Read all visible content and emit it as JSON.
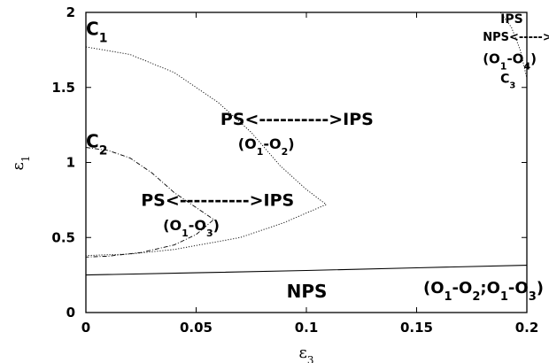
{
  "chart_data": {
    "type": "line",
    "xlabel": "ε",
    "xlabel_sub": "3",
    "ylabel": "ε",
    "ylabel_sub": "1",
    "xlim": [
      0,
      0.2
    ],
    "ylim": [
      0,
      2
    ],
    "x_ticks": [
      0,
      0.05,
      0.1,
      0.15,
      0.2
    ],
    "x_tick_labels": [
      "0",
      "0.05",
      "0.1",
      "0.15",
      "0.2"
    ],
    "y_ticks": [
      0,
      0.5,
      1,
      1.5,
      2
    ],
    "y_tick_labels": [
      "0",
      "0.5",
      "1",
      "1.5",
      "2"
    ],
    "grid": false,
    "series": [
      {
        "dash": "solid",
        "points": [
          [
            0,
            0.25
          ],
          [
            0.05,
            0.265
          ],
          [
            0.1,
            0.28
          ],
          [
            0.15,
            0.298
          ],
          [
            0.2,
            0.315
          ]
        ]
      },
      {
        "dash": "dotted",
        "points": [
          [
            0,
            1.77
          ],
          [
            0.02,
            1.72
          ],
          [
            0.04,
            1.6
          ],
          [
            0.06,
            1.4
          ],
          [
            0.075,
            1.2
          ],
          [
            0.088,
            0.98
          ],
          [
            0.1,
            0.82
          ],
          [
            0.109,
            0.72
          ],
          [
            0.09,
            0.6
          ],
          [
            0.07,
            0.5
          ],
          [
            0.04,
            0.42
          ],
          [
            0.02,
            0.39
          ],
          [
            0,
            0.38
          ]
        ]
      },
      {
        "dash": "dashdot",
        "points": [
          [
            0,
            1.1
          ],
          [
            0.01,
            1.08
          ],
          [
            0.02,
            1.03
          ],
          [
            0.03,
            0.93
          ],
          [
            0.04,
            0.8
          ],
          [
            0.05,
            0.7
          ],
          [
            0.058,
            0.62
          ],
          [
            0.05,
            0.52
          ],
          [
            0.04,
            0.45
          ],
          [
            0.025,
            0.4
          ],
          [
            0.01,
            0.375
          ],
          [
            0,
            0.37
          ]
        ]
      },
      {
        "dash": "dotted",
        "points": [
          [
            0.188,
            2.0
          ],
          [
            0.193,
            1.9
          ],
          [
            0.197,
            1.75
          ],
          [
            0.2,
            1.56
          ]
        ]
      }
    ],
    "annotations": [
      {
        "id": "c1",
        "text": "C",
        "sub": "1",
        "x": 0.0,
        "y": 1.85,
        "size": 20
      },
      {
        "id": "c2",
        "text": "C",
        "sub": "2",
        "x": 0.0,
        "y": 1.1,
        "size": 20
      },
      {
        "id": "c3",
        "text": "C",
        "sub": "3",
        "x": 0.188,
        "y": 1.53,
        "size": 14
      },
      {
        "id": "ps-ips-upper",
        "text": "PS<---------->IPS",
        "x": 0.061,
        "y": 1.25,
        "size": 19
      },
      {
        "id": "o1o2",
        "text": "(O",
        "sub": "1",
        "tail": "-O",
        "sub2": "2",
        "tail2": ")",
        "x": 0.069,
        "y": 1.09,
        "size": 16
      },
      {
        "id": "ps-ips-lower",
        "text": "PS<---------->IPS",
        "x": 0.025,
        "y": 0.71,
        "size": 19
      },
      {
        "id": "o1o3",
        "text": "(O",
        "sub": "1",
        "tail": "-O",
        "sub2": "3",
        "tail2": ")",
        "x": 0.035,
        "y": 0.55,
        "size": 16
      },
      {
        "id": "nps-center",
        "text": "NPS",
        "x": 0.091,
        "y": 0.1,
        "size": 20
      },
      {
        "id": "o1o2-o1o3",
        "text": "(O",
        "sub": "1",
        "tail": "-O",
        "sub2": "2",
        "tail2": ";O",
        "sub3": "1",
        "tail3": "-O",
        "sub4": "3",
        "tail4": ")",
        "x": 0.153,
        "y": 0.13,
        "size": 18
      },
      {
        "id": "ips-top-right",
        "text": "IPS",
        "x": 0.188,
        "y": 1.93,
        "size": 14
      },
      {
        "id": "nps-ips-topright",
        "text": "NPS<----->",
        "x": 0.18,
        "y": 1.81,
        "size": 13
      },
      {
        "id": "o1o4",
        "text": "(O",
        "sub": "1",
        "tail": "-O",
        "sub2": "4",
        "tail2": ")",
        "x": 0.18,
        "y": 1.66,
        "size": 15
      }
    ]
  }
}
